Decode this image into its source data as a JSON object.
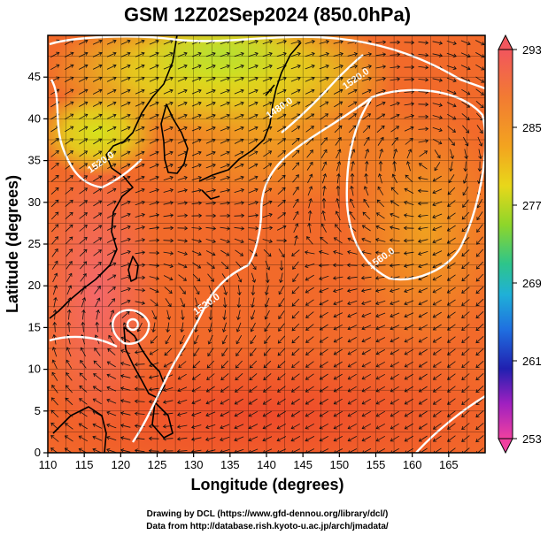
{
  "title": "GSM 12Z02Sep2024 (850.0hPa)",
  "x_axis": {
    "label": "Longitude (degrees)",
    "ticks": [
      "110",
      "115",
      "120",
      "125",
      "130",
      "135",
      "140",
      "145",
      "150",
      "155",
      "160",
      "165"
    ]
  },
  "y_axis": {
    "label": "Latitude  (degrees)",
    "ticks": [
      "0",
      "5",
      "10",
      "15",
      "20",
      "25",
      "30",
      "35",
      "40",
      "45"
    ]
  },
  "colorbar": {
    "labels": [
      "293",
      "285",
      "277",
      "269",
      "261",
      "253"
    ],
    "colors": [
      "#f2565d",
      "#f38a2a",
      "#e3c21a",
      "#8ed62a",
      "#2ec0a6",
      "#1f6fe0",
      "#2020b0",
      "#c020c0",
      "#f040a0"
    ]
  },
  "contour_labels": [
    {
      "text": "1520.0",
      "lon": 152.5,
      "lat": 44.5
    },
    {
      "text": "1480.0",
      "lon": 142.0,
      "lat": 41.0
    },
    {
      "text": "1520.0",
      "lon": 117.5,
      "lat": 34.5
    },
    {
      "text": "1560.0",
      "lon": 156.0,
      "lat": 23.0
    },
    {
      "text": "1520.0",
      "lon": 132.0,
      "lat": 17.5
    }
  ],
  "credits": {
    "line1": "Drawing by DCL (https://www.gfd-dennou.org/library/dcl/)",
    "line2": "Data from http://database.rish.kyoto-u.ac.jp/arch/jmadata/"
  },
  "map_extent": {
    "lon": [
      110,
      170
    ],
    "lat": [
      0,
      50
    ]
  }
}
